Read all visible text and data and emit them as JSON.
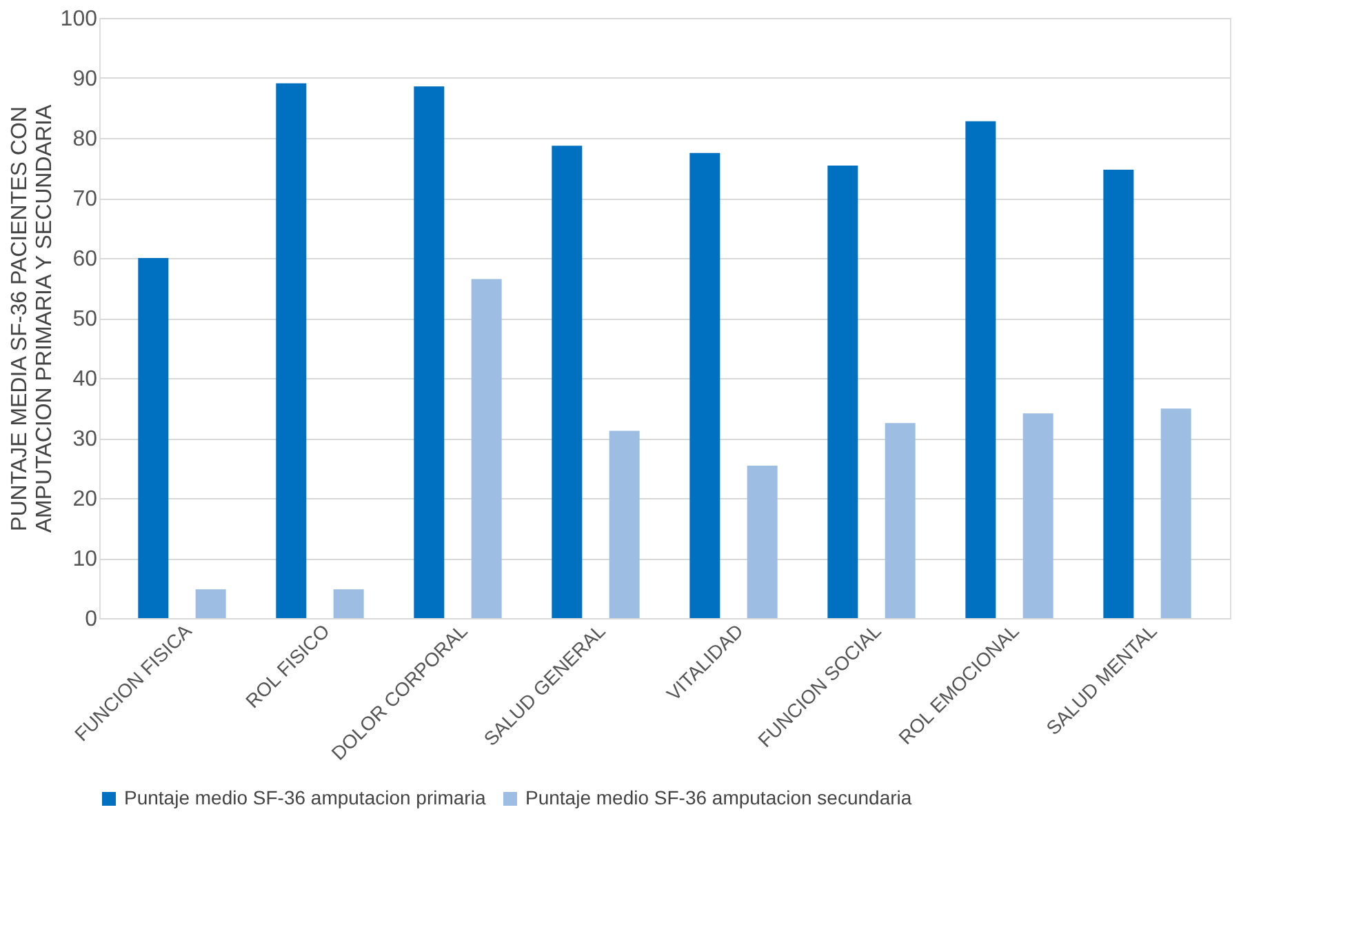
{
  "chart_data": {
    "type": "bar",
    "ylabel": "PUNTAJE MEDIA SF-36 PACIENTES CON AMPUTACION PRIMARIA Y SECUNDARIA",
    "categories": [
      "FUNCION FISICA",
      "ROL FISICO",
      "DOLOR CORPORAL",
      "SALUD GENERAL",
      "VITALIDAD",
      "FUNCION SOCIAL",
      "ROL EMOCIONAL",
      "SALUD MENTAL"
    ],
    "series": [
      {
        "name": "Puntaje medio SF-36 amputacion primaria",
        "color": "#0070c0",
        "values": [
          60,
          89.1,
          88.6,
          78.7,
          77.5,
          75.4,
          82.8,
          74.7
        ]
      },
      {
        "name": "Puntaje medio SF-36 amputacion  secundaria",
        "color": "#9dbde3",
        "values": [
          4.8,
          4.8,
          56.5,
          31.2,
          25.4,
          32.5,
          34.1,
          34.9
        ]
      }
    ],
    "ylim": [
      0,
      100
    ],
    "yticks": [
      0,
      10,
      20,
      30,
      40,
      50,
      60,
      70,
      80,
      90,
      100
    ],
    "grid": "y",
    "legend": "bottom"
  }
}
